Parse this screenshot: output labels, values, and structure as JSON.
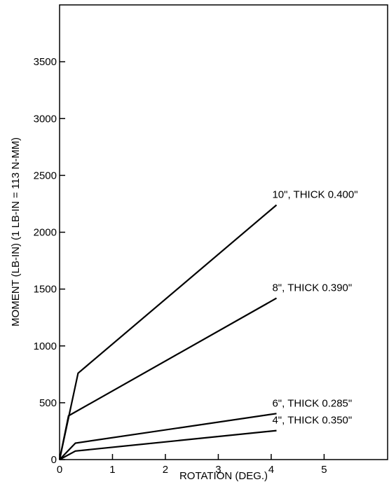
{
  "chart_data": {
    "type": "line",
    "xlabel": "ROTATION (DEG.)",
    "ylabel": "MOMENT (LB-IN) (1 LB-IN = 113 N-MM)",
    "xlim": [
      0,
      6.2
    ],
    "ylim": [
      0,
      4000
    ],
    "x_ticks": [
      0,
      1,
      2,
      3,
      4,
      5
    ],
    "y_ticks": [
      0,
      500,
      1000,
      1500,
      2000,
      2500,
      3000,
      3500
    ],
    "grid": false,
    "legend": "none",
    "series": [
      {
        "name": "10\", THICK  0.400\"",
        "x": [
          0,
          0.35,
          4.1
        ],
        "y": [
          0,
          760,
          2240
        ]
      },
      {
        "name": "8\", THICK  0.390\"",
        "x": [
          0,
          0.17,
          4.1
        ],
        "y": [
          0,
          385,
          1420
        ]
      },
      {
        "name": "6\", THICK  0.285\"",
        "x": [
          0,
          0.3,
          4.1
        ],
        "y": [
          0,
          145,
          405
        ]
      },
      {
        "name": "4\", THICK  0.350\"",
        "x": [
          0,
          0.3,
          4.1
        ],
        "y": [
          0,
          75,
          255
        ]
      }
    ]
  }
}
